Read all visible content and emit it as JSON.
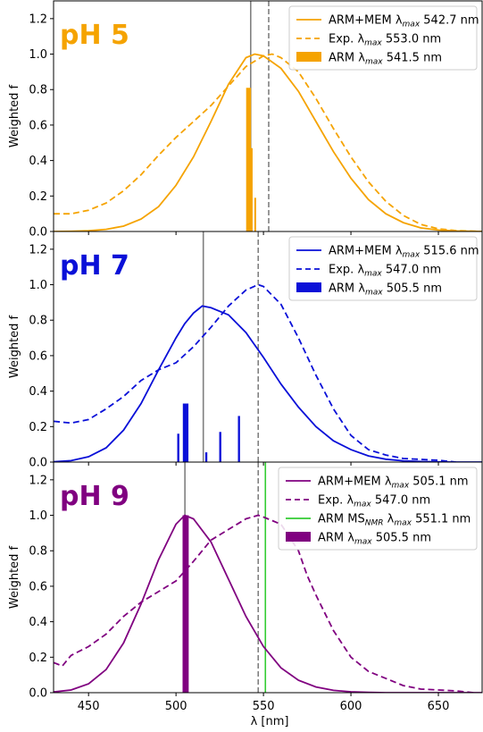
{
  "chart_data": [
    {
      "type": "line",
      "title": "pH 5",
      "title_color": "#f5a300",
      "xlabel": "",
      "ylabel": "Weighted f",
      "xlim": [
        430,
        675
      ],
      "ylim": [
        0,
        1.3
      ],
      "yticks": [
        0.0,
        0.2,
        0.4,
        0.6,
        0.8,
        1.0,
        1.2
      ],
      "color": "#f5a300",
      "legend_position": "top-right",
      "legend": [
        {
          "type": "solid",
          "prefix": "ARM+MEM ",
          "sub": "max",
          "suffix": " 542.7 nm",
          "color": "#f5a300"
        },
        {
          "type": "dashed",
          "prefix": "Exp. ",
          "sub": "max",
          "suffix": " 553.0 nm",
          "color": "#f5a300"
        },
        {
          "type": "bar",
          "prefix": "ARM ",
          "sub": "max",
          "suffix": " 541.5 nm",
          "color": "#f5a300"
        }
      ],
      "vlines": [
        {
          "x": 542.7,
          "style": "solid",
          "color": "#808080"
        },
        {
          "x": 553.0,
          "style": "dashed",
          "color": "#808080"
        }
      ],
      "series": [
        {
          "style": "solid",
          "x": [
            430,
            440,
            450,
            460,
            470,
            480,
            490,
            500,
            510,
            520,
            530,
            540,
            545,
            550,
            560,
            570,
            580,
            590,
            600,
            610,
            620,
            630,
            640,
            650,
            660,
            675
          ],
          "y": [
            0.0,
            0.001,
            0.004,
            0.012,
            0.03,
            0.07,
            0.14,
            0.26,
            0.42,
            0.62,
            0.83,
            0.98,
            1.0,
            0.99,
            0.92,
            0.79,
            0.62,
            0.45,
            0.3,
            0.18,
            0.1,
            0.05,
            0.02,
            0.008,
            0.003,
            0.0
          ]
        },
        {
          "style": "dashed",
          "x": [
            430,
            440,
            450,
            460,
            470,
            480,
            490,
            500,
            510,
            520,
            530,
            540,
            550,
            555,
            560,
            570,
            580,
            590,
            600,
            610,
            620,
            630,
            640,
            650,
            660,
            675
          ],
          "y": [
            0.1,
            0.1,
            0.12,
            0.16,
            0.23,
            0.32,
            0.43,
            0.53,
            0.62,
            0.71,
            0.82,
            0.93,
            0.99,
            1.0,
            0.98,
            0.9,
            0.75,
            0.58,
            0.42,
            0.28,
            0.17,
            0.09,
            0.04,
            0.015,
            0.005,
            0.0
          ]
        }
      ],
      "sticks": [
        {
          "x": 541.5,
          "y": 0.81,
          "w": 2.8
        },
        {
          "x": 543.2,
          "y": 0.47,
          "w": 1.2
        },
        {
          "x": 545.3,
          "y": 0.19,
          "w": 1.0
        }
      ]
    },
    {
      "type": "line",
      "title": "pH 7",
      "title_color": "#0a10d8",
      "xlabel": "",
      "ylabel": "Weighted f",
      "xlim": [
        430,
        675
      ],
      "ylim": [
        0,
        1.3
      ],
      "yticks": [
        0.0,
        0.2,
        0.4,
        0.6,
        0.8,
        1.0,
        1.2
      ],
      "color": "#0a10d8",
      "legend_position": "top-right",
      "legend": [
        {
          "type": "solid",
          "prefix": "ARM+MEM ",
          "sub": "max",
          "suffix": " 515.6 nm",
          "color": "#0a10d8"
        },
        {
          "type": "dashed",
          "prefix": "Exp. ",
          "sub": "max",
          "suffix": " 547.0 nm",
          "color": "#0a10d8"
        },
        {
          "type": "bar",
          "prefix": "ARM ",
          "sub": "max",
          "suffix": " 505.5 nm",
          "color": "#0a10d8"
        }
      ],
      "vlines": [
        {
          "x": 515.6,
          "style": "solid",
          "color": "#808080"
        },
        {
          "x": 547.0,
          "style": "dashed",
          "color": "#808080"
        }
      ],
      "series": [
        {
          "style": "solid",
          "x": [
            430,
            440,
            450,
            460,
            470,
            480,
            490,
            500,
            505,
            510,
            515,
            520,
            530,
            540,
            550,
            560,
            570,
            580,
            590,
            600,
            610,
            620,
            630,
            640,
            650,
            660,
            675
          ],
          "y": [
            0.002,
            0.008,
            0.03,
            0.08,
            0.18,
            0.33,
            0.52,
            0.7,
            0.78,
            0.84,
            0.88,
            0.87,
            0.83,
            0.73,
            0.59,
            0.44,
            0.31,
            0.2,
            0.12,
            0.07,
            0.035,
            0.016,
            0.007,
            0.003,
            0.001,
            0.0,
            0.0
          ]
        },
        {
          "style": "dashed",
          "x": [
            430,
            440,
            450,
            460,
            470,
            480,
            490,
            500,
            510,
            520,
            530,
            540,
            547,
            550,
            560,
            570,
            580,
            590,
            600,
            610,
            620,
            630,
            640,
            650,
            660
          ],
          "y": [
            0.23,
            0.22,
            0.24,
            0.3,
            0.37,
            0.46,
            0.52,
            0.56,
            0.65,
            0.76,
            0.88,
            0.97,
            1.0,
            0.99,
            0.89,
            0.7,
            0.49,
            0.3,
            0.15,
            0.07,
            0.04,
            0.02,
            0.015,
            0.01,
            0.0
          ]
        }
      ],
      "sticks": [
        {
          "x": 501.3,
          "y": 0.16,
          "w": 1.2
        },
        {
          "x": 505.5,
          "y": 0.33,
          "w": 3.2
        },
        {
          "x": 517.3,
          "y": 0.055,
          "w": 1.2
        },
        {
          "x": 525.3,
          "y": 0.17,
          "w": 1.2
        },
        {
          "x": 536.0,
          "y": 0.26,
          "w": 1.2
        }
      ]
    },
    {
      "type": "line",
      "title": "pH 9",
      "title_color": "#800080",
      "xlabel": "λ [nm]",
      "ylabel": "Weighted f",
      "xlim": [
        430,
        675
      ],
      "ylim": [
        0,
        1.3
      ],
      "yticks": [
        0.0,
        0.2,
        0.4,
        0.6,
        0.8,
        1.0,
        1.2
      ],
      "xticks": [
        450,
        500,
        550,
        600,
        650
      ],
      "color": "#800080",
      "legend_position": "top-right",
      "legend": [
        {
          "type": "solid",
          "prefix": "ARM+MEM ",
          "sub": "max",
          "suffix": " 505.1 nm",
          "color": "#800080"
        },
        {
          "type": "dashed",
          "prefix": "Exp. ",
          "sub": "max",
          "suffix": " 547.0 nm",
          "color": "#800080"
        },
        {
          "type": "solid",
          "prefix": "ARM MS",
          "sub0": "NMR",
          "mid": " ",
          "sub": "max",
          "suffix": " 551.1 nm",
          "color": "#33cc33"
        },
        {
          "type": "bar",
          "prefix": "ARM ",
          "sub": "max",
          "suffix": " 505.5 nm",
          "color": "#800080"
        }
      ],
      "vlines": [
        {
          "x": 505.1,
          "style": "solid",
          "color": "#808080"
        },
        {
          "x": 547.0,
          "style": "dashed",
          "color": "#808080"
        },
        {
          "x": 551.1,
          "style": "solid",
          "color": "#33cc33"
        }
      ],
      "series": [
        {
          "style": "solid",
          "x": [
            430,
            440,
            450,
            460,
            470,
            480,
            490,
            500,
            505,
            510,
            520,
            530,
            540,
            550,
            560,
            570,
            580,
            590,
            600,
            610,
            620,
            630,
            640,
            650,
            660,
            675
          ],
          "y": [
            0.004,
            0.015,
            0.05,
            0.13,
            0.28,
            0.5,
            0.75,
            0.95,
            1.0,
            0.98,
            0.85,
            0.64,
            0.43,
            0.26,
            0.14,
            0.07,
            0.032,
            0.013,
            0.005,
            0.002,
            0.0,
            0.0,
            0.0,
            0.0,
            0.0,
            0.0
          ]
        },
        {
          "style": "dashed",
          "x": [
            430,
            435,
            440,
            450,
            460,
            470,
            480,
            490,
            500,
            510,
            520,
            530,
            540,
            547,
            550,
            560,
            570,
            575,
            580,
            590,
            600,
            610,
            620,
            630,
            640,
            650,
            660,
            670
          ],
          "y": [
            0.17,
            0.15,
            0.21,
            0.26,
            0.33,
            0.43,
            0.51,
            0.57,
            0.63,
            0.74,
            0.86,
            0.92,
            0.98,
            1.0,
            0.99,
            0.95,
            0.8,
            0.66,
            0.55,
            0.35,
            0.2,
            0.12,
            0.08,
            0.04,
            0.02,
            0.015,
            0.01,
            0.0
          ]
        }
      ],
      "sticks": [
        {
          "x": 505.5,
          "y": 1.0,
          "w": 3.5
        }
      ]
    }
  ]
}
